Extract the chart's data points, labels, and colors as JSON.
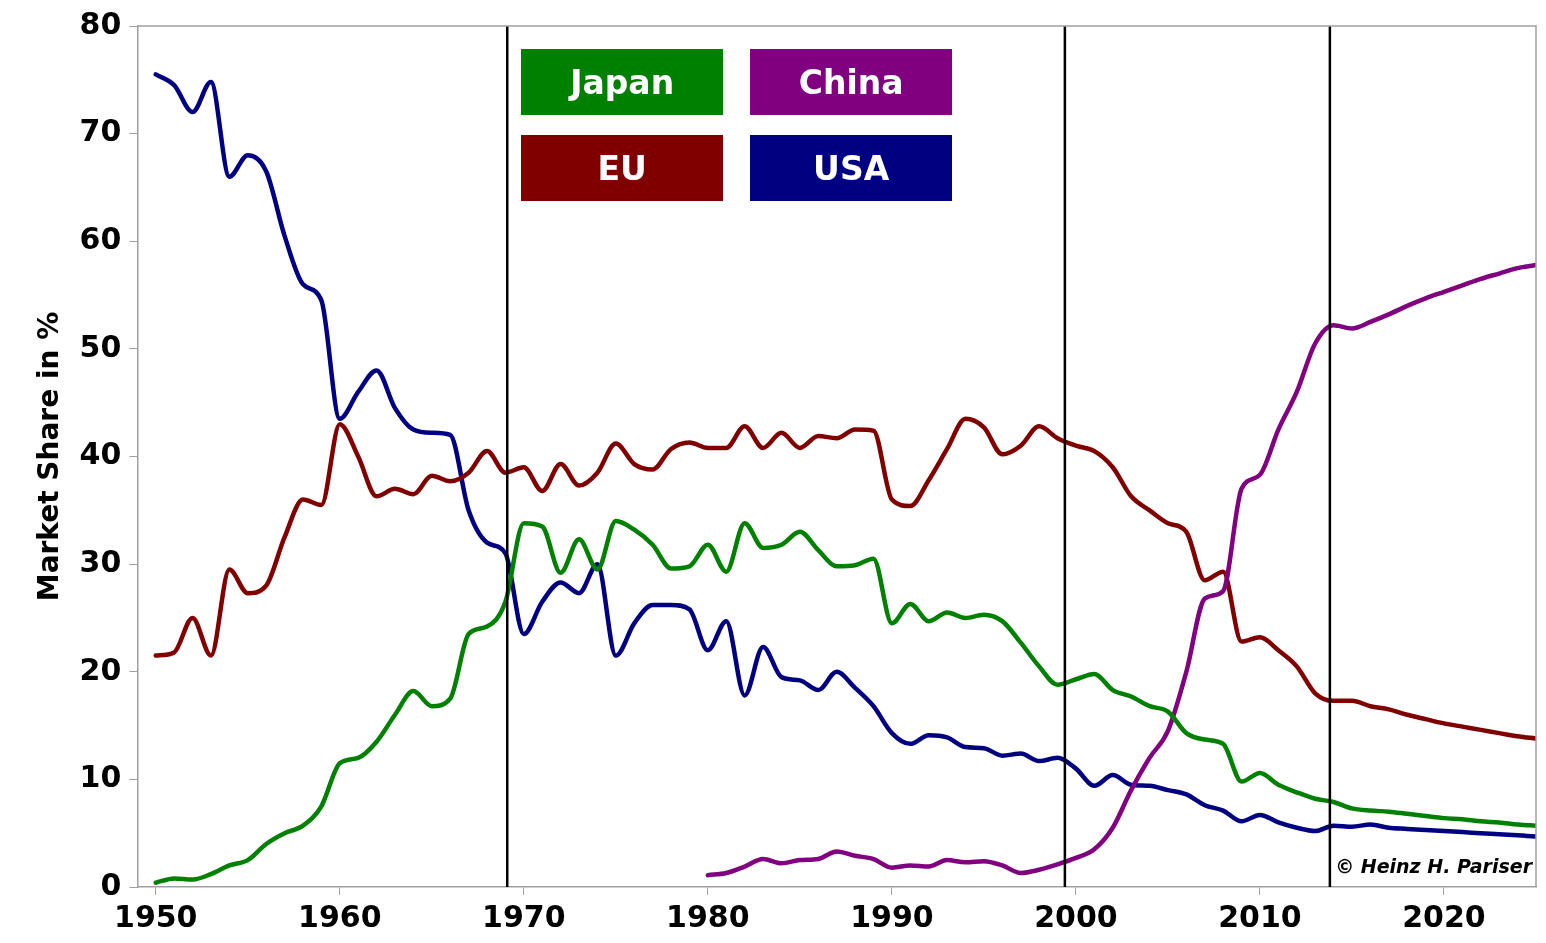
{
  "chart_data": {
    "type": "line",
    "ylabel": "Market Share in %",
    "x": [
      1950,
      1951,
      1952,
      1953,
      1954,
      1955,
      1956,
      1957,
      1958,
      1959,
      1960,
      1961,
      1962,
      1963,
      1964,
      1965,
      1966,
      1967,
      1968,
      1969,
      1970,
      1971,
      1972,
      1973,
      1974,
      1975,
      1976,
      1977,
      1978,
      1979,
      1980,
      1981,
      1982,
      1983,
      1984,
      1985,
      1986,
      1987,
      1988,
      1989,
      1990,
      1991,
      1992,
      1993,
      1994,
      1995,
      1996,
      1997,
      1998,
      1999,
      2000,
      2001,
      2002,
      2003,
      2004,
      2005,
      2006,
      2007,
      2008,
      2009,
      2010,
      2011,
      2012,
      2013,
      2014,
      2015,
      2016,
      2017,
      2018,
      2019,
      2020,
      2021,
      2022,
      2023,
      2024,
      2025
    ],
    "series": [
      {
        "name": "Japan",
        "color": "#008000",
        "values": [
          0.4,
          0.8,
          0.7,
          1.2,
          2,
          2.5,
          4,
          5,
          5.7,
          7.5,
          11.5,
          12,
          13.5,
          16,
          18.2,
          16.8,
          17.5,
          23.5,
          24.2,
          26.5,
          33.8,
          33.5,
          29.2,
          32.3,
          29.5,
          34,
          33.2,
          31.8,
          29.6,
          29.8,
          31.8,
          29.3,
          33.8,
          31.5,
          31.8,
          33,
          31.3,
          29.8,
          29.9,
          30.5,
          24.5,
          26.3,
          24.7,
          25.5,
          25,
          25.3,
          24.7,
          22.7,
          20.5,
          18.8,
          19.3,
          19.8,
          18.3,
          17.7,
          16.8,
          16.3,
          14.3,
          13.7,
          13.3,
          9.8,
          10.6,
          9.5,
          8.8,
          8.2,
          7.9,
          7.3,
          7.1,
          7,
          6.8,
          6.6,
          6.4,
          6.3,
          6.1,
          6,
          5.8,
          5.7
        ]
      },
      {
        "name": "China",
        "color": "#800080",
        "x": [
          1980,
          1981,
          1982,
          1983,
          1984,
          1985,
          1986,
          1987,
          1988,
          1989,
          1990,
          1991,
          1992,
          1993,
          1994,
          1995,
          1996,
          1997,
          1998,
          1999,
          2000,
          2001,
          2002,
          2003,
          2004,
          2005,
          2006,
          2007,
          2008,
          2009,
          2010,
          2011,
          2012,
          2013,
          2014,
          2015,
          2016,
          2017,
          2018,
          2019,
          2020,
          2021,
          2022,
          2023,
          2024,
          2025
        ],
        "values": [
          1.1,
          1.3,
          1.9,
          2.6,
          2.2,
          2.5,
          2.6,
          3.3,
          2.9,
          2.6,
          1.8,
          2,
          1.9,
          2.5,
          2.3,
          2.4,
          2,
          1.3,
          1.6,
          2.1,
          2.7,
          3.5,
          5.5,
          9,
          12,
          14.5,
          20,
          26.8,
          27.5,
          37,
          38.3,
          42.5,
          46,
          50.5,
          52.2,
          51.9,
          52.5,
          53.2,
          54,
          54.7,
          55.3,
          55.9,
          56.5,
          57,
          57.5,
          57.8
        ]
      },
      {
        "name": "EU",
        "color": "#800000",
        "values": [
          21.5,
          21.8,
          25,
          21.5,
          29.5,
          27.3,
          28,
          32.5,
          36,
          35.5,
          43,
          40,
          36.3,
          37,
          36.5,
          38.2,
          37.7,
          38.5,
          40.5,
          38.5,
          39,
          36.8,
          39.3,
          37.3,
          38.5,
          41.2,
          39.3,
          38.8,
          40.7,
          41.3,
          40.8,
          40.8,
          42.8,
          40.8,
          42.2,
          40.8,
          41.9,
          41.7,
          42.5,
          42.4,
          36,
          35.4,
          37.8,
          40.7,
          43.5,
          42.7,
          40.2,
          41,
          42.8,
          41.7,
          41,
          40.5,
          39,
          36.3,
          35,
          33.8,
          33,
          28.5,
          29.3,
          22.8,
          23.2,
          22,
          20.5,
          18,
          17.3,
          17.3,
          16.8,
          16.5,
          16,
          15.6,
          15.2,
          14.9,
          14.6,
          14.3,
          14,
          13.8
        ]
      },
      {
        "name": "USA",
        "color": "#000080",
        "values": [
          75.5,
          74.5,
          72,
          74.8,
          66,
          68,
          66.5,
          60.5,
          56,
          54.5,
          43.5,
          46,
          48,
          44.5,
          42.5,
          42.2,
          42,
          35,
          32,
          31,
          23.5,
          26.5,
          28.3,
          27.3,
          30,
          21.5,
          24.5,
          26.2,
          26.2,
          25.8,
          22,
          24.7,
          17.8,
          22.3,
          19.5,
          19.2,
          18.3,
          20,
          18.5,
          16.8,
          14.3,
          13.3,
          14.1,
          13.9,
          13,
          12.9,
          12.2,
          12.4,
          11.7,
          12,
          11,
          9.4,
          10.4,
          9.5,
          9.4,
          9,
          8.6,
          7.6,
          7.1,
          6.1,
          6.7,
          6,
          5.5,
          5.2,
          5.7,
          5.6,
          5.8,
          5.5,
          5.4,
          5.3,
          5.2,
          5.1,
          5,
          4.9,
          4.8,
          4.7
        ]
      }
    ],
    "xlim": [
      1949,
      2025
    ],
    "xticks": [
      1950,
      1960,
      1970,
      1980,
      1990,
      2000,
      2010,
      2020
    ],
    "ylim": [
      0,
      80
    ],
    "yticks": [
      0,
      10,
      20,
      30,
      40,
      50,
      60,
      70,
      80
    ],
    "ref_lines": [
      {
        "axis": "x",
        "value": 1969.1,
        "color": "#000000"
      },
      {
        "axis": "x",
        "value": 1999.4,
        "color": "#000000"
      },
      {
        "axis": "x",
        "value": 2013.8,
        "color": "#000000"
      }
    ],
    "annotations": [
      "© Heinz H. Pariser"
    ],
    "grid": false,
    "legend": "top",
    "marker": "none",
    "line_style": "solid"
  }
}
